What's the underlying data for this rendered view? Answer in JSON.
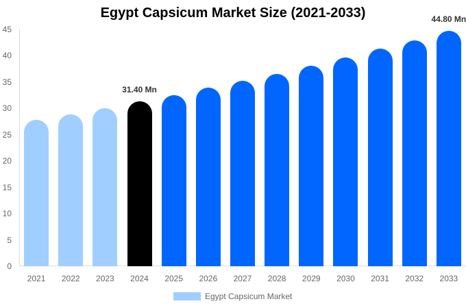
{
  "chart_data": {
    "type": "bar",
    "title": "Egypt Capsicum Market Size (2021-2033)",
    "xlabel": "",
    "ylabel": "",
    "ylim": [
      0,
      45
    ],
    "yticks": [
      0,
      5,
      10,
      15,
      20,
      25,
      30,
      35,
      40,
      45
    ],
    "grid": false,
    "legend_position": "bottom",
    "categories": [
      "2021",
      "2022",
      "2023",
      "2024",
      "2025",
      "2026",
      "2027",
      "2028",
      "2029",
      "2030",
      "2031",
      "2032",
      "2033"
    ],
    "series": [
      {
        "name": "Egypt Capsicum Market",
        "values": [
          27.8,
          28.9,
          30.1,
          31.4,
          32.5,
          33.9,
          35.2,
          36.6,
          38.1,
          39.7,
          41.3,
          42.9,
          44.8
        ]
      }
    ],
    "bar_colors": [
      "#a0cfff",
      "#a0cfff",
      "#a0cfff",
      "#000000",
      "#0066ff",
      "#0066ff",
      "#0066ff",
      "#0066ff",
      "#0066ff",
      "#0066ff",
      "#0066ff",
      "#0066ff",
      "#0066ff"
    ],
    "annotations": [
      {
        "category": "2024",
        "text": "31.40 Mn"
      },
      {
        "category": "2033",
        "text": "44.80 Mn"
      }
    ]
  },
  "legend": {
    "label": "Egypt Capsicum Market",
    "color": "#a0cfff"
  }
}
